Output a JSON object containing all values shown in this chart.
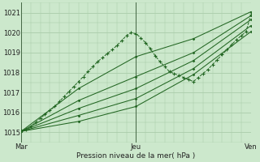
{
  "xlabel": "Pression niveau de la mer( hPa )",
  "bg_color": "#cce8cc",
  "grid_color": "#aaccaa",
  "line_color": "#226622",
  "vline_color": "#446644",
  "xlim": [
    0,
    48
  ],
  "ylim": [
    1014.5,
    1021.5
  ],
  "yticks": [
    1015,
    1016,
    1017,
    1018,
    1019,
    1020,
    1021
  ],
  "xtick_labels": [
    "Mar",
    "Jeu",
    "Ven"
  ],
  "xtick_positions": [
    0,
    24,
    48
  ],
  "series_dense": {
    "x": [
      0,
      1,
      2,
      3,
      4,
      5,
      6,
      7,
      8,
      9,
      10,
      11,
      12,
      13,
      14,
      15,
      16,
      17,
      18,
      19,
      20,
      21,
      22,
      23,
      24,
      25,
      26,
      27,
      28,
      29,
      30,
      31,
      32,
      33,
      34,
      35,
      36,
      37,
      38,
      39,
      40,
      41,
      42,
      43,
      44,
      45,
      46,
      47,
      48
    ],
    "y": [
      1015.1,
      1015.15,
      1015.3,
      1015.5,
      1015.7,
      1015.9,
      1016.1,
      1016.3,
      1016.55,
      1016.8,
      1017.05,
      1017.3,
      1017.55,
      1017.8,
      1018.05,
      1018.3,
      1018.55,
      1018.75,
      1018.95,
      1019.15,
      1019.35,
      1019.6,
      1019.85,
      1020.0,
      1019.95,
      1019.75,
      1019.5,
      1019.2,
      1018.85,
      1018.55,
      1018.3,
      1018.05,
      1017.95,
      1017.85,
      1017.75,
      1017.65,
      1017.55,
      1017.75,
      1017.95,
      1018.15,
      1018.4,
      1018.65,
      1018.9,
      1019.15,
      1019.4,
      1019.65,
      1019.85,
      1020.05,
      1020.9
    ]
  },
  "series_lines": [
    {
      "x": [
        0,
        12,
        24,
        36,
        48
      ],
      "y": [
        1015.05,
        1017.2,
        1018.8,
        1019.7,
        1021.05
      ]
    },
    {
      "x": [
        0,
        12,
        24,
        36,
        48
      ],
      "y": [
        1015.05,
        1016.6,
        1017.8,
        1019.0,
        1020.85
      ]
    },
    {
      "x": [
        0,
        12,
        24,
        36,
        48
      ],
      "y": [
        1015.05,
        1016.2,
        1017.2,
        1018.6,
        1020.65
      ]
    },
    {
      "x": [
        0,
        12,
        24,
        36,
        48
      ],
      "y": [
        1015.05,
        1015.85,
        1016.7,
        1018.2,
        1020.35
      ]
    },
    {
      "x": [
        0,
        12,
        24,
        36,
        48
      ],
      "y": [
        1015.05,
        1015.55,
        1016.3,
        1017.9,
        1020.05
      ]
    }
  ]
}
